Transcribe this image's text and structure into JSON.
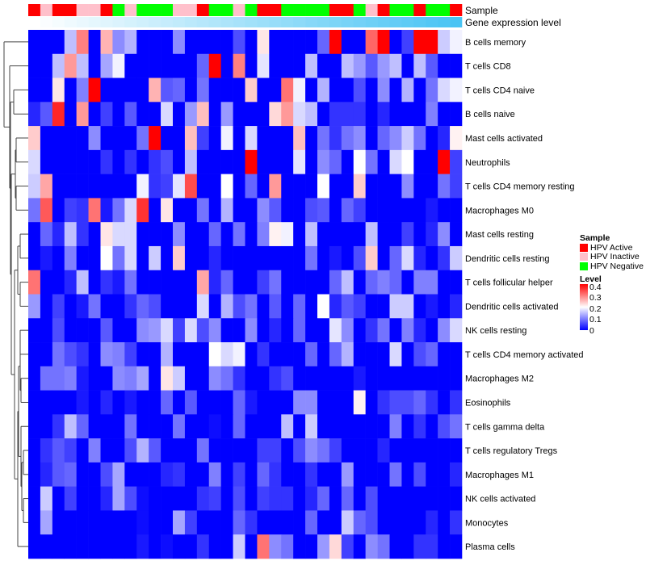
{
  "chart_data": {
    "type": "heatmap",
    "title": "",
    "annotations": {
      "sample_label": "Sample",
      "gene_label": "Gene expression level"
    },
    "rows": [
      "B cells memory",
      "T cells CD8",
      "T cells CD4 naive",
      "B cells naive",
      "Mast cells activated",
      "Neutrophils",
      "T cells CD4 memory resting",
      "Macrophages M0",
      "Mast cells resting",
      "Dendritic cells resting",
      "T cells follicular helper",
      "Dendritic cells activated",
      "NK cells resting",
      "T cells CD4 memory activated",
      "Macrophages M2",
      "Eosinophils",
      "T cells gamma delta",
      "T cells regulatory  Tregs",
      "Macrophages M1",
      "NK cells activated",
      "Monocytes",
      "Plasma cells"
    ],
    "sample_groups": [
      "HPV Active",
      "HPV Inactive",
      "HPV Active",
      "HPV Active",
      "HPV Inactive",
      "HPV Inactive",
      "HPV Active",
      "HPV Negative",
      "HPV Inactive",
      "HPV Negative",
      "HPV Negative",
      "HPV Negative",
      "HPV Inactive",
      "HPV Inactive",
      "HPV Active",
      "HPV Negative",
      "HPV Negative",
      "HPV Inactive",
      "HPV Negative",
      "HPV Active",
      "HPV Active",
      "HPV Negative",
      "HPV Negative",
      "HPV Negative",
      "HPV Negative",
      "HPV Active",
      "HPV Active",
      "HPV Negative",
      "HPV Inactive",
      "HPV Active",
      "HPV Negative",
      "HPV Negative",
      "HPV Active",
      "HPV Negative",
      "HPV Negative",
      "HPV Active"
    ],
    "values": [
      [
        0,
        0,
        0,
        0.15,
        0.3,
        0,
        0.26,
        0.11,
        0.14,
        0,
        0,
        0,
        0.11,
        0,
        0,
        0,
        0,
        0.06,
        0,
        0.22,
        0,
        0,
        0,
        0,
        0.08,
        0.4,
        0,
        0,
        0.32,
        0.4,
        0,
        0.05,
        0.4,
        0.4,
        0.16,
        0.19
      ],
      [
        0,
        0,
        0.15,
        0.28,
        0.15,
        0,
        0.13,
        0.19,
        0,
        0,
        0,
        0,
        0,
        0,
        0.08,
        0.4,
        0,
        0.3,
        0,
        0.18,
        0,
        0,
        0,
        0.15,
        0,
        0,
        0.15,
        0.12,
        0.07,
        0.12,
        0.15,
        0,
        0.15,
        0.07,
        0,
        0
      ],
      [
        0,
        0,
        0.22,
        0,
        0.1,
        0.4,
        0,
        0,
        0,
        0,
        0.26,
        0.07,
        0.08,
        0,
        0.09,
        0,
        0,
        0,
        0.24,
        0,
        0,
        0.31,
        0.19,
        0,
        0.14,
        0,
        0,
        0.06,
        0,
        0.11,
        0,
        0.14,
        0,
        0.09,
        0.17,
        0.19
      ],
      [
        0.03,
        0.07,
        0.37,
        0,
        0.28,
        0,
        0.05,
        0,
        0.07,
        0,
        0,
        0.17,
        0,
        0.12,
        0.25,
        0,
        0.12,
        0,
        0,
        0,
        0.23,
        0.28,
        0.17,
        0.15,
        0,
        0.04,
        0.04,
        0.04,
        0,
        0.03,
        0,
        0,
        0,
        0.1,
        0,
        0
      ],
      [
        0.24,
        0,
        0,
        0,
        0,
        0.11,
        0,
        0,
        0,
        0.09,
        0.4,
        0,
        0,
        0.25,
        0.05,
        0,
        0.19,
        0,
        0.17,
        0,
        0,
        0,
        0.25,
        0,
        0.09,
        0.04,
        0.09,
        0.11,
        0,
        0.08,
        0.11,
        0.16,
        0.09,
        0,
        0.03,
        0.21
      ],
      [
        0.17,
        0,
        0,
        0,
        0,
        0,
        0.04,
        0,
        0.04,
        0,
        0.04,
        0.06,
        0,
        0.15,
        0,
        0,
        0,
        0,
        0.4,
        0,
        0,
        0,
        0.18,
        0,
        0.11,
        0.08,
        0,
        0.2,
        0.09,
        0,
        0.17,
        0.2,
        0,
        0,
        0.4,
        0.05
      ],
      [
        0.16,
        0.27,
        0,
        0,
        0,
        0,
        0,
        0,
        0,
        0.19,
        0.04,
        0.05,
        0.18,
        0.34,
        0,
        0,
        0.2,
        0,
        0.08,
        0,
        0.28,
        0,
        0,
        0,
        0.2,
        0,
        0,
        0.24,
        0,
        0,
        0,
        0.11,
        0,
        0,
        0.09,
        0.05
      ],
      [
        0.09,
        0.33,
        0,
        0.05,
        0.04,
        0.31,
        0.02,
        0.09,
        0.17,
        0.36,
        0,
        0.22,
        0,
        0,
        0.09,
        0,
        0.14,
        0,
        0,
        0.11,
        0.07,
        0,
        0,
        0.06,
        0.07,
        0,
        0.08,
        0.05,
        0,
        0,
        0,
        0,
        0,
        0.02,
        0,
        0
      ],
      [
        0,
        0.08,
        0.03,
        0.15,
        0.04,
        0,
        0.22,
        0.17,
        0.17,
        0,
        0,
        0,
        0.11,
        0,
        0,
        0.08,
        0,
        0.09,
        0,
        0.1,
        0.21,
        0.19,
        0,
        0.15,
        0,
        0,
        0,
        0,
        0.15,
        0,
        0,
        0.05,
        0,
        0.03,
        0.11,
        0
      ],
      [
        0,
        0.02,
        0,
        0.1,
        0,
        0,
        0.2,
        0.09,
        0.17,
        0,
        0.16,
        0,
        0.24,
        0,
        0,
        0.03,
        0,
        0,
        0,
        0,
        0,
        0,
        0,
        0.09,
        0,
        0.02,
        0,
        0.06,
        0.24,
        0,
        0.08,
        0.17,
        0.03,
        0,
        0.04,
        0.16
      ],
      [
        0.31,
        0,
        0,
        0.03,
        0.15,
        0,
        0.04,
        0.02,
        0.09,
        0,
        0,
        0,
        0,
        0,
        0.27,
        0.03,
        0.08,
        0,
        0,
        0.05,
        0.09,
        0,
        0,
        0,
        0,
        0.08,
        0.15,
        0,
        0.08,
        0.1,
        0.08,
        0,
        0.1,
        0.1,
        0,
        0
      ],
      [
        0.12,
        0,
        0.05,
        0,
        0.02,
        0.09,
        0,
        0,
        0.04,
        0.08,
        0.06,
        0,
        0,
        0,
        0.17,
        0,
        0.14,
        0.06,
        0.09,
        0,
        0.07,
        0,
        0.08,
        0,
        0.2,
        0.03,
        0.07,
        0.05,
        0,
        0,
        0.16,
        0.16,
        0,
        0.02,
        0,
        0.03
      ],
      [
        0,
        0,
        0.06,
        0,
        0,
        0,
        0.07,
        0,
        0,
        0.11,
        0.12,
        0.17,
        0.05,
        0.17,
        0.06,
        0.11,
        0,
        0,
        0.11,
        0,
        0.03,
        0,
        0.08,
        0,
        0,
        0.18,
        0.11,
        0,
        0.04,
        0.09,
        0,
        0.1,
        0.03,
        0,
        0.11,
        0.17
      ],
      [
        0,
        0,
        0.09,
        0.06,
        0.04,
        0,
        0.11,
        0.1,
        0.05,
        0,
        0,
        0.14,
        0,
        0,
        0,
        0.2,
        0.17,
        0.19,
        0,
        0.04,
        0,
        0,
        0,
        0.08,
        0,
        0.08,
        0.14,
        0,
        0,
        0,
        0.17,
        0,
        0.06,
        0.08,
        0,
        0
      ],
      [
        0,
        0.09,
        0.09,
        0.1,
        0.02,
        0,
        0,
        0.11,
        0.1,
        0.13,
        0,
        0.22,
        0.16,
        0,
        0,
        0.11,
        0.09,
        0.04,
        0,
        0,
        0.04,
        0.06,
        0,
        0,
        0,
        0,
        0,
        0.02,
        0,
        0,
        0,
        0,
        0,
        0,
        0,
        0
      ],
      [
        0,
        0,
        0,
        0,
        0.02,
        0,
        0.03,
        0,
        0.02,
        0,
        0,
        0.08,
        0,
        0.07,
        0,
        0,
        0,
        0.08,
        0.02,
        0,
        0,
        0,
        0.11,
        0.11,
        0,
        0,
        0,
        0.21,
        0,
        0.04,
        0.06,
        0.06,
        0.08,
        0.04,
        0,
        0.04
      ],
      [
        0,
        0,
        0.04,
        0.15,
        0.08,
        0,
        0,
        0,
        0.09,
        0,
        0,
        0,
        0.09,
        0,
        0,
        0.01,
        0,
        0.08,
        0,
        0,
        0,
        0.15,
        0,
        0.16,
        0,
        0,
        0,
        0,
        0,
        0,
        0.1,
        0,
        0.04,
        0,
        0.06,
        0.09
      ],
      [
        0,
        0.04,
        0.07,
        0.05,
        0,
        0.1,
        0,
        0,
        0.06,
        0.14,
        0.07,
        0,
        0,
        0,
        0.09,
        0,
        0,
        0,
        0,
        0.05,
        0.05,
        0,
        0.06,
        0.11,
        0.09,
        0.05,
        0,
        0,
        0,
        0.03,
        0,
        0,
        0,
        0,
        0,
        0
      ],
      [
        0,
        0.03,
        0.07,
        0.08,
        0,
        0,
        0.06,
        0.13,
        0,
        0,
        0,
        0.03,
        0.04,
        0,
        0,
        0.1,
        0,
        0.05,
        0,
        0.08,
        0.04,
        0,
        0,
        0.04,
        0,
        0,
        0.12,
        0,
        0,
        0,
        0.09,
        0,
        0.06,
        0,
        0,
        0.03
      ],
      [
        0,
        0.16,
        0,
        0.05,
        0,
        0,
        0.03,
        0.13,
        0.06,
        0.01,
        0,
        0,
        0,
        0,
        0.04,
        0.05,
        0,
        0.06,
        0,
        0.05,
        0.04,
        0.04,
        0,
        0.03,
        0.08,
        0,
        0.08,
        0,
        0.06,
        0,
        0,
        0,
        0,
        0,
        0,
        0
      ],
      [
        0,
        0.13,
        0,
        0,
        0,
        0,
        0,
        0,
        0,
        0.01,
        0,
        0,
        0.13,
        0.05,
        0,
        0,
        0,
        0.08,
        0.04,
        0,
        0,
        0,
        0,
        0.08,
        0,
        0,
        0.16,
        0.08,
        0.06,
        0,
        0,
        0,
        0,
        0.03,
        0,
        0.04
      ],
      [
        0,
        0,
        0,
        0,
        0,
        0,
        0,
        0,
        0,
        0.02,
        0,
        0.01,
        0,
        0,
        0.04,
        0,
        0,
        0.16,
        0,
        0.31,
        0.11,
        0.09,
        0,
        0,
        0.12,
        0.23,
        0.05,
        0,
        0.11,
        0.09,
        0,
        0,
        0.04,
        0.04,
        0,
        0
      ]
    ],
    "color_scale": {
      "min": 0,
      "mid": 0.2,
      "max": 0.4,
      "low": "#0000ff",
      "midcolor": "#ffffff",
      "high": "#ff0000"
    },
    "legend": {
      "sample_title": "Sample",
      "sample_items": [
        {
          "label": "HPV Active",
          "color": "#ff0000"
        },
        {
          "label": "HPV Inactive",
          "color": "#ffc0cb"
        },
        {
          "label": "HPV Negative",
          "color": "#00ff00"
        }
      ],
      "level_title": "Level",
      "level_ticks": [
        "0.4",
        "0.3",
        "0.2",
        "0.1",
        "0"
      ],
      "placement": "right"
    },
    "gene_bar_colors": {
      "start": "#ffffff",
      "end": "#49c4f4"
    }
  }
}
